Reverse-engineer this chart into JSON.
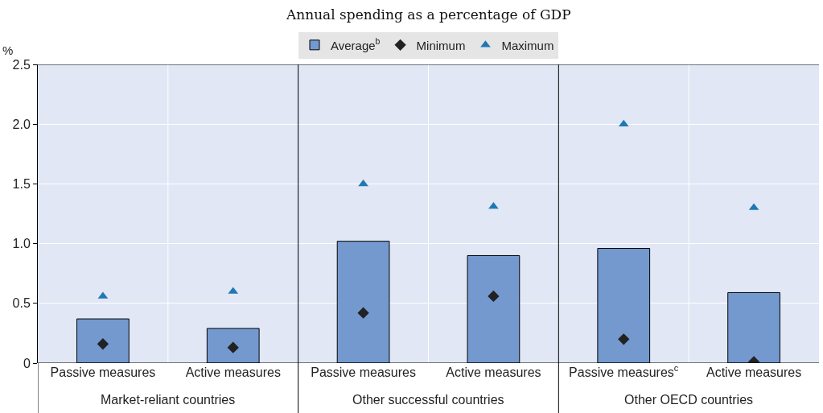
{
  "chart_data": {
    "type": "bar",
    "subtitle": "Annual spending as a percentage of GDP",
    "ylabel": "%",
    "categories": [
      "Passive measures",
      "Active measures",
      "Passive measures",
      "Active measures",
      "Passive measures$^{c}$",
      "Active measures"
    ],
    "series": [
      {
        "name": "Average$^{b}$",
        "color": "#7399cf",
        "values": [
          0.37,
          0.29,
          1.02,
          0.9,
          0.96,
          0.59
        ]
      },
      {
        "name": "Minimum",
        "type": "scatter",
        "marker": "diamond",
        "color": "#222222",
        "values": [
          0.16,
          0.13,
          0.42,
          0.56,
          0.2,
          0.01
        ]
      },
      {
        "name": "Maximum",
        "type": "scatter",
        "marker": "triangle",
        "color": "#1f78b4",
        "values": [
          0.56,
          0.6,
          1.5,
          1.31,
          2.0,
          1.3
        ]
      }
    ],
    "annotations": [
      "Market-reliant countries",
      "Other successful countries",
      "Other OECD countries"
    ],
    "ylim": [
      0,
      2.5
    ],
    "yticks": [
      0,
      0.5,
      {
        "value": 1,
        "label": "1.0"
      },
      1.5,
      {
        "value": 2,
        "label": "2.0"
      },
      2.5
    ],
    "grid": true,
    "legend": "top"
  }
}
